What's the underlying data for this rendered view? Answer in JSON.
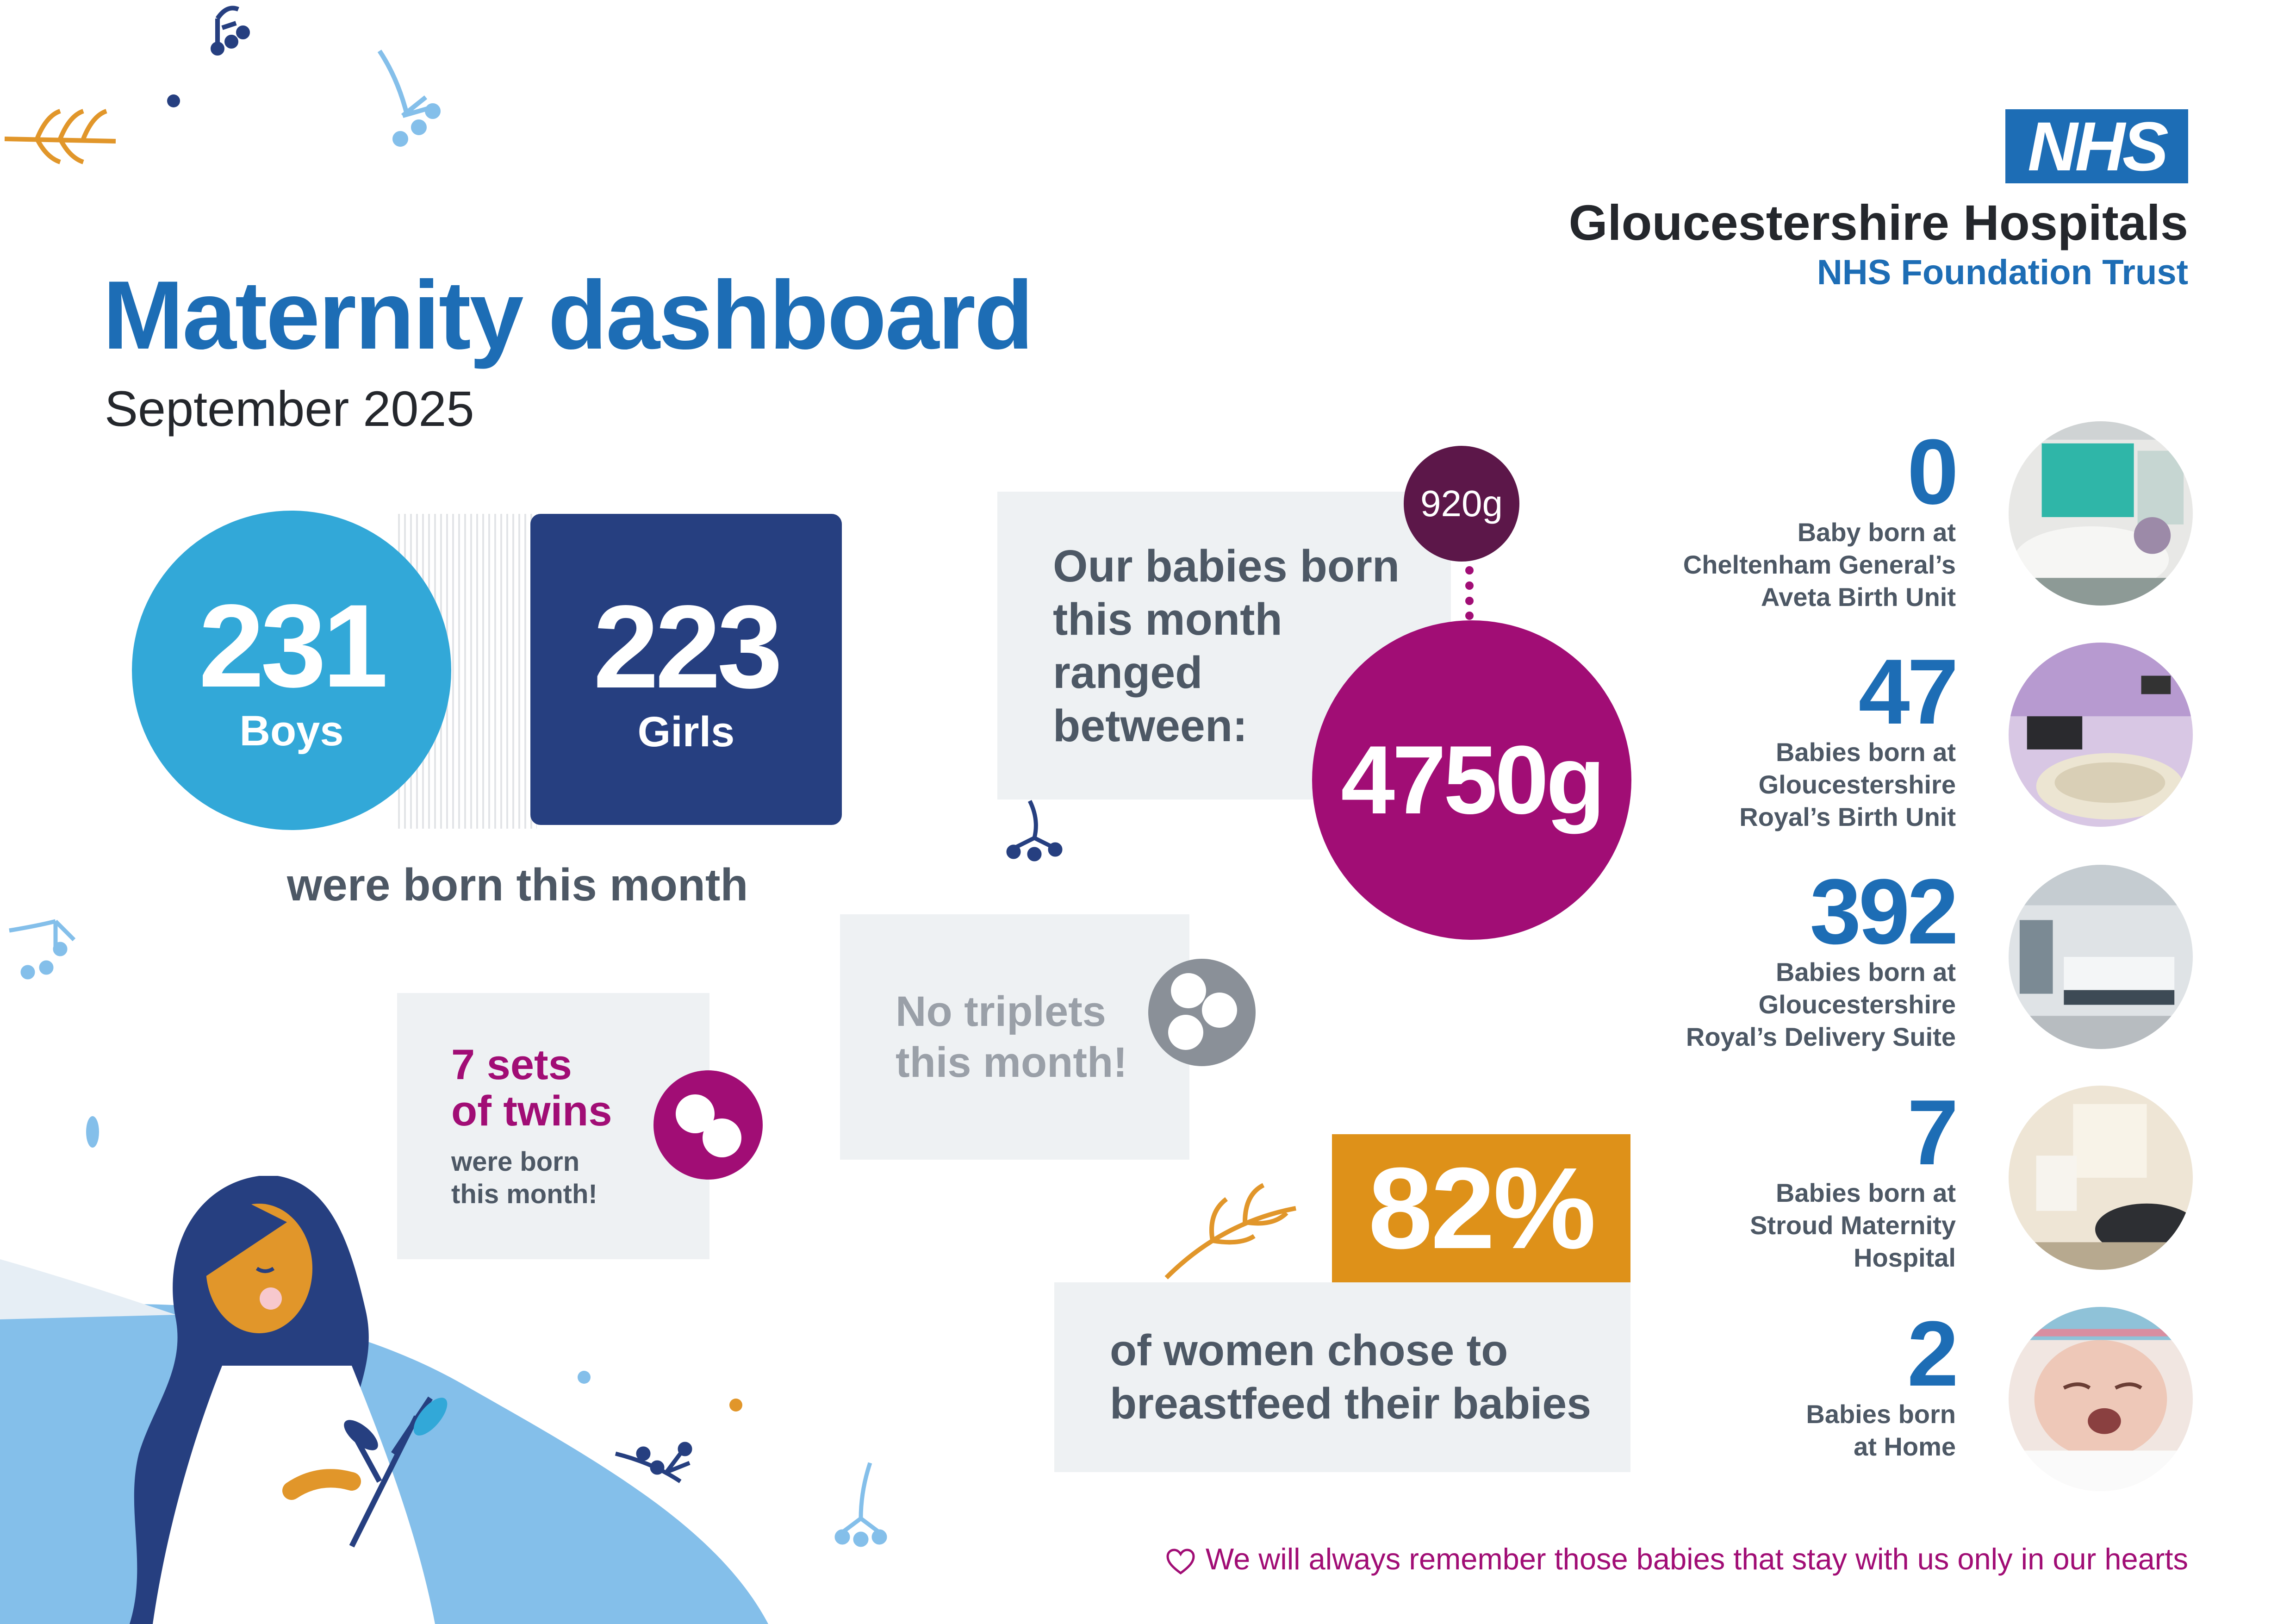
{
  "header": {
    "title": "Maternity dashboard",
    "subtitle": "September 2025"
  },
  "logo": {
    "badge": "NHS",
    "org_name": "Gloucestershire Hospitals",
    "org_sub": "NHS Foundation Trust"
  },
  "births": {
    "boys_count": "231",
    "boys_label": "Boys",
    "girls_count": "223",
    "girls_label": "Girls",
    "caption": "were born this month"
  },
  "weights": {
    "text_lines": [
      "Our babies born",
      "this month",
      "ranged",
      "between:"
    ],
    "min": "920g",
    "max": "4750g"
  },
  "twins": {
    "title_lines": [
      "7 sets",
      "of twins"
    ],
    "sub_lines": [
      "were born",
      "this month!"
    ]
  },
  "triplets": {
    "text_lines": [
      "No triplets",
      "this month!"
    ]
  },
  "breastfeeding": {
    "percent": "82%",
    "text_lines": [
      "of women chose to",
      "breastfeed their babies"
    ]
  },
  "locations": [
    {
      "count": "0",
      "label_lines": [
        "Baby born at",
        "Cheltenham General’s",
        "Aveta Birth Unit"
      ]
    },
    {
      "count": "47",
      "label_lines": [
        "Babies born at",
        "Gloucestershire",
        "Royal’s Birth Unit"
      ]
    },
    {
      "count": "392",
      "label_lines": [
        "Babies born at",
        "Gloucestershire",
        "Royal’s Delivery Suite"
      ]
    },
    {
      "count": "7",
      "label_lines": [
        "Babies born at",
        "Stroud Maternity",
        "Hospital"
      ]
    },
    {
      "count": "2",
      "label_lines": [
        "Babies born",
        "at Home"
      ]
    }
  ],
  "footer": {
    "remember": "We will always remember those babies that stay with us only in our hearts"
  },
  "colors": {
    "nhs_blue": "#1d6db5",
    "light_blue": "#32a8d8",
    "navy": "#263f80",
    "magenta": "#a10d75",
    "plum": "#5c1749",
    "orange": "#de9119",
    "panel_grey": "#eef1f3"
  },
  "icons": [
    "flower-sprig-icon",
    "leaf-branch-icon",
    "twins-icon",
    "triplets-icon",
    "heart-icon"
  ]
}
